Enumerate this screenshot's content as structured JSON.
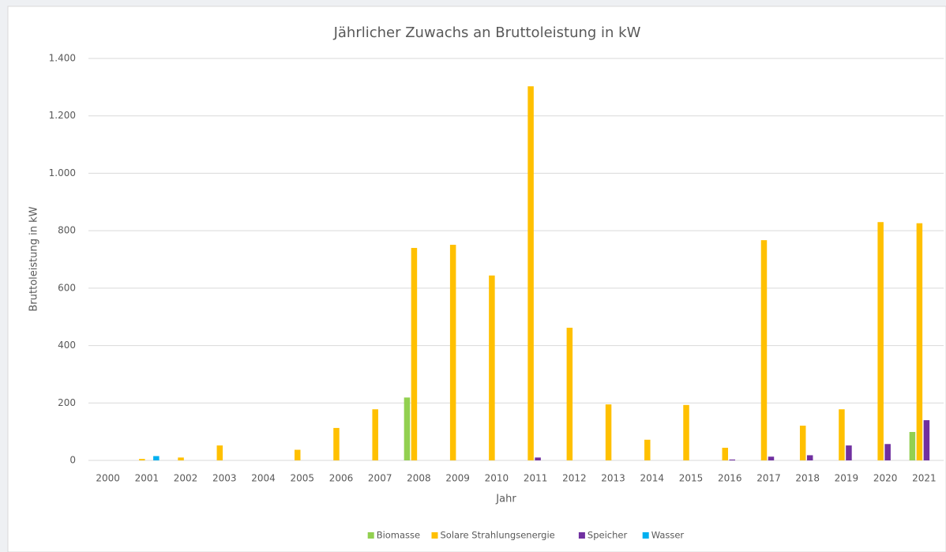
{
  "chart_data": {
    "type": "bar",
    "title": "Jährlicher Zuwachs an Bruttoleistung in kW",
    "x_label": "Jahr",
    "y_label": "Bruttoleistung in kW",
    "categories": [
      "2000",
      "2001",
      "2002",
      "2003",
      "2004",
      "2005",
      "2006",
      "2007",
      "2008",
      "2009",
      "2010",
      "2011",
      "2012",
      "2013",
      "2014",
      "2015",
      "2016",
      "2017",
      "2018",
      "2019",
      "2020",
      "2021"
    ],
    "series": [
      {
        "name": "Biomasse",
        "color": "#92d050",
        "values": [
          null,
          null,
          null,
          null,
          null,
          null,
          null,
          null,
          219,
          null,
          null,
          null,
          null,
          null,
          null,
          null,
          null,
          null,
          null,
          null,
          null,
          99
        ]
      },
      {
        "name": "Solare Strahlungsenergie",
        "color": "#ffc000",
        "values": [
          null,
          5,
          10,
          52,
          null,
          37,
          113,
          178,
          740,
          751,
          644,
          1303,
          462,
          195,
          72,
          193,
          44,
          767,
          121,
          178,
          830,
          826
        ]
      },
      {
        "name": "Speicher",
        "color": "#7030a0",
        "values": [
          null,
          null,
          null,
          null,
          null,
          null,
          null,
          null,
          null,
          null,
          null,
          10,
          null,
          null,
          null,
          null,
          3,
          13,
          18,
          52,
          57,
          140
        ]
      },
      {
        "name": "Wasser",
        "color": "#00b0f0",
        "values": [
          null,
          15,
          null,
          null,
          null,
          null,
          null,
          null,
          null,
          null,
          null,
          null,
          null,
          null,
          null,
          null,
          null,
          null,
          null,
          null,
          null,
          null
        ]
      }
    ],
    "ylim": [
      0,
      1400
    ],
    "yticks": [
      0,
      200,
      400,
      600,
      800,
      {
        "value": 1000,
        "label": "1.000"
      },
      {
        "value": 1200,
        "label": "1.200"
      },
      {
        "value": 1400,
        "label": "1.400"
      }
    ],
    "grid": true,
    "legend": "bottom"
  }
}
